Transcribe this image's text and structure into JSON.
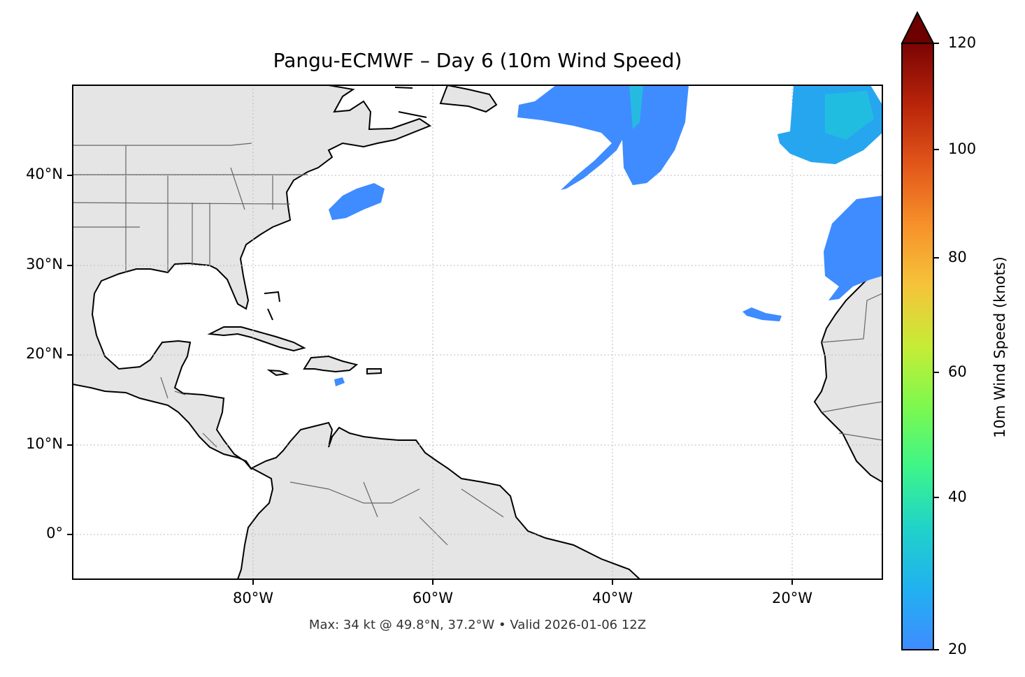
{
  "title": "Pangu-ECMWF – Day 6 (10m Wind Speed)",
  "footer": "Max: 34 kt @ 49.8°N, 37.2°W • Valid 2026-01-06 12Z",
  "map": {
    "extent": {
      "lon_min": -100,
      "lon_max": -10,
      "lat_min": -5,
      "lat_max": 50
    },
    "projection": "PlateCarree",
    "gridlines": "dotted",
    "lat_ticks": [
      "40°N",
      "30°N",
      "20°N",
      "10°N",
      "0°"
    ],
    "lon_ticks": [
      "80°W",
      "60°W",
      "40°W",
      "20°W"
    ],
    "colors": {
      "land": "#e5e5e5",
      "coast": "#000000",
      "borders": "#666666",
      "ocean": "#ffffff"
    }
  },
  "colorbar": {
    "label": "10m Wind Speed (knots)",
    "ticks": [
      "120",
      "100",
      "80",
      "60",
      "40",
      "20"
    ],
    "range": [
      20,
      120
    ],
    "extend": "max",
    "colormap": "turbo-like",
    "colors": [
      "#3e8cff",
      "#1fc7d9",
      "#2be58d",
      "#a5f53c",
      "#e3d335",
      "#fcb13a",
      "#f2761f",
      "#d93f0a",
      "#a91704",
      "#6e0000"
    ]
  },
  "wind_features": [
    {
      "name": "north-central-atlantic-jet",
      "max_kt": 34
    },
    {
      "name": "northeast-atlantic-patch"
    },
    {
      "name": "azores-patch"
    },
    {
      "name": "west-atlantic-patch"
    },
    {
      "name": "canary-patch"
    },
    {
      "name": "caribbean-patch"
    }
  ]
}
